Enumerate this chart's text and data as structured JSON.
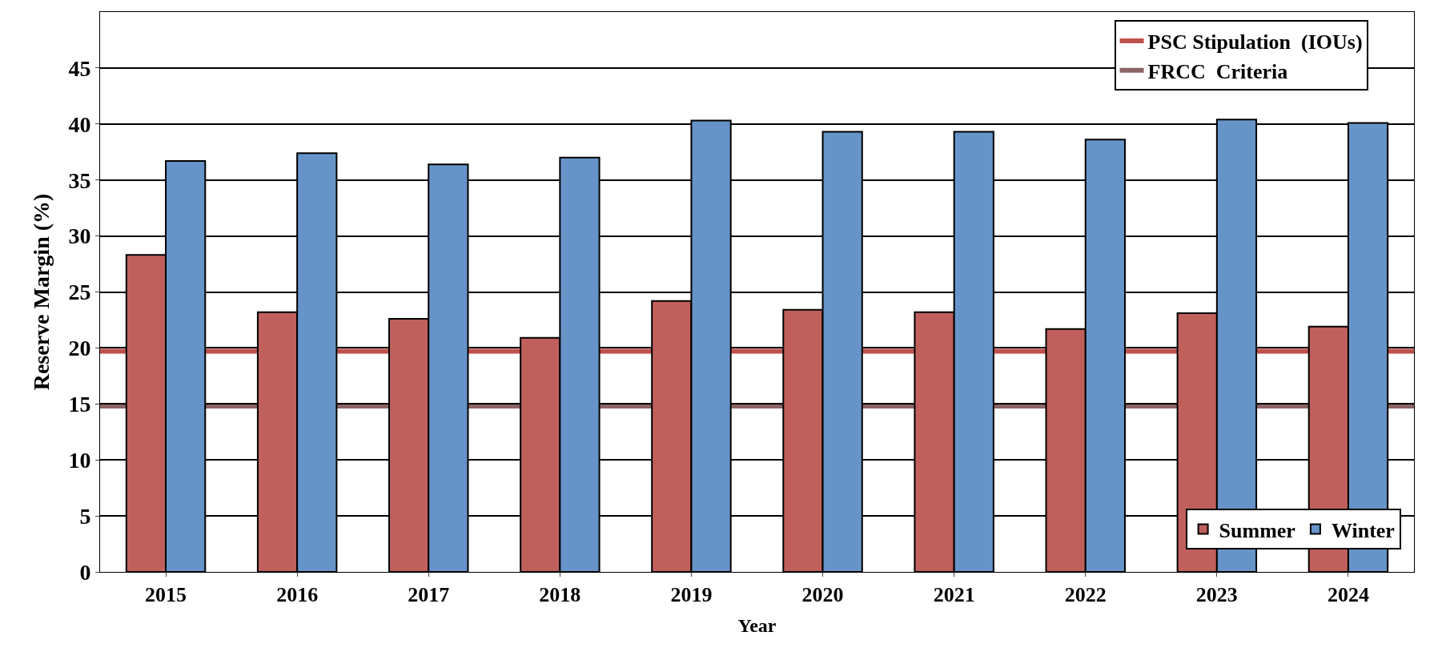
{
  "chart_data": {
    "type": "bar",
    "xlabel": "Year",
    "ylabel": "Reserve Margin (%)",
    "categories": [
      "2015",
      "2016",
      "2017",
      "2018",
      "2019",
      "2020",
      "2021",
      "2022",
      "2023",
      "2024"
    ],
    "series": [
      {
        "name": "Summer",
        "color": "#c0605c",
        "values": [
          28.3,
          23.2,
          22.6,
          20.9,
          24.2,
          23.4,
          23.2,
          21.7,
          23.1,
          21.9
        ]
      },
      {
        "name": "Winter",
        "color": "#6794c8",
        "values": [
          36.7,
          37.4,
          36.4,
          37.0,
          40.3,
          39.3,
          39.3,
          38.6,
          40.4,
          40.1
        ]
      }
    ],
    "ylim": [
      0,
      50
    ],
    "yticks": [
      0,
      5,
      10,
      15,
      20,
      25,
      30,
      35,
      40,
      45
    ],
    "ref_lines": [
      {
        "axis": "y",
        "value": 19.7,
        "label": "PSC Stipulation  (IOUs)",
        "color": "#c0504d"
      },
      {
        "axis": "y",
        "value": 14.8,
        "label": "FRCC  Criteria",
        "color": "#8c6464"
      }
    ],
    "grid": "y",
    "legend": "right"
  }
}
